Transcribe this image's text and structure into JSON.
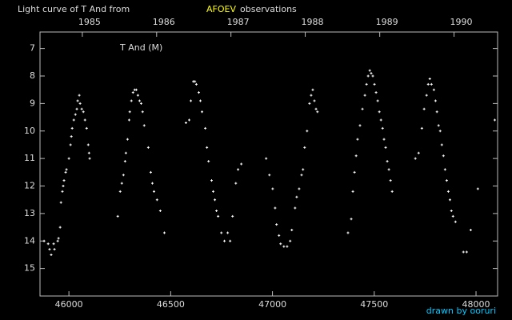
{
  "chart_data": {
    "type": "scatter",
    "title": "Light curve of T And from",
    "title_source": "AFOEV",
    "title_suffix": "observations",
    "annotation": "T And (M)",
    "credit": "drawn by ooruri",
    "background": "#000000",
    "color": "#ffffff",
    "source_color": "#ffff00",
    "credit_color": "#00c8ff",
    "xlim": [
      45858,
      48106
    ],
    "ylim": [
      16,
      6.4
    ],
    "xticks": [
      46000,
      46500,
      47000,
      47500,
      48000
    ],
    "yticks": [
      7,
      8,
      9,
      10,
      11,
      12,
      13,
      14,
      15
    ],
    "x2ticks": [
      {
        "value": 46066,
        "label": "1985"
      },
      {
        "value": 46431,
        "label": "1986"
      },
      {
        "value": 46796,
        "label": "1987"
      },
      {
        "value": 47161,
        "label": "1988"
      },
      {
        "value": 47527,
        "label": "1989"
      },
      {
        "value": 47892,
        "label": "1990"
      }
    ],
    "x": [
      45878,
      45898,
      45905,
      45913,
      45925,
      45929,
      45945,
      45949,
      45957,
      45961,
      45968,
      45972,
      45976,
      45984,
      45988,
      46000,
      46008,
      46012,
      46016,
      46024,
      46032,
      46039,
      46043,
      46051,
      46055,
      46063,
      46071,
      46079,
      46087,
      46095,
      46099,
      46102,
      46240,
      46252,
      46260,
      46268,
      46276,
      46280,
      46288,
      46296,
      46299,
      46307,
      46315,
      46323,
      46331,
      46339,
      46347,
      46355,
      46362,
      46370,
      46390,
      46402,
      46410,
      46418,
      46433,
      46449,
      46469,
      46575,
      46591,
      46599,
      46611,
      46619,
      46626,
      46638,
      46646,
      46654,
      46670,
      46678,
      46686,
      46701,
      46709,
      46717,
      46725,
      46733,
      46749,
      46764,
      46780,
      46792,
      46804,
      46820,
      46831,
      46847,
      46969,
      46985,
      47001,
      47013,
      47020,
      47032,
      47040,
      47056,
      47072,
      47087,
      47095,
      47111,
      47119,
      47131,
      47143,
      47150,
      47158,
      47170,
      47182,
      47190,
      47198,
      47206,
      47214,
      47221,
      47371,
      47387,
      47395,
      47403,
      47411,
      47418,
      47430,
      47442,
      47454,
      47462,
      47470,
      47478,
      47485,
      47493,
      47501,
      47509,
      47517,
      47525,
      47533,
      47541,
      47548,
      47556,
      47564,
      47572,
      47580,
      47588,
      47702,
      47718,
      47734,
      47745,
      47757,
      47765,
      47773,
      47781,
      47793,
      47801,
      47808,
      47816,
      47824,
      47832,
      47840,
      47848,
      47856,
      47864,
      47872,
      47879,
      47887,
      47899,
      47938,
      47954,
      47974,
      48009,
      48092
    ],
    "y": [
      14.0,
      14.1,
      14.3,
      14.5,
      14.1,
      14.3,
      14.0,
      13.9,
      13.5,
      12.6,
      12.2,
      12.0,
      11.8,
      11.5,
      11.4,
      11.0,
      10.5,
      10.2,
      9.9,
      9.6,
      9.4,
      9.2,
      8.9,
      8.7,
      9.0,
      9.2,
      9.3,
      9.6,
      9.9,
      10.5,
      10.8,
      11.0,
      13.1,
      12.2,
      11.9,
      11.6,
      11.1,
      10.8,
      10.3,
      9.6,
      9.3,
      8.9,
      8.6,
      8.5,
      8.5,
      8.7,
      8.9,
      9.0,
      9.3,
      9.8,
      10.6,
      11.5,
      11.9,
      12.2,
      12.5,
      12.9,
      13.7,
      9.7,
      9.6,
      8.9,
      8.2,
      8.2,
      8.3,
      8.6,
      8.9,
      9.3,
      9.9,
      10.6,
      11.1,
      11.8,
      12.2,
      12.5,
      12.9,
      13.1,
      13.7,
      14.0,
      13.7,
      14.0,
      13.1,
      11.9,
      11.4,
      11.2,
      11.0,
      11.6,
      12.1,
      12.8,
      13.4,
      13.8,
      14.1,
      14.2,
      14.2,
      14.0,
      13.6,
      12.8,
      12.4,
      12.1,
      11.6,
      11.4,
      10.6,
      10.0,
      9.0,
      8.7,
      8.5,
      8.9,
      9.2,
      9.3,
      13.7,
      13.2,
      12.2,
      11.5,
      10.9,
      10.3,
      9.8,
      9.2,
      8.7,
      8.3,
      8.0,
      7.8,
      7.9,
      8.0,
      8.3,
      8.6,
      8.9,
      9.3,
      9.6,
      9.9,
      10.3,
      10.6,
      11.1,
      11.4,
      11.8,
      12.2,
      11.0,
      10.8,
      9.9,
      9.2,
      8.7,
      8.3,
      8.1,
      8.3,
      8.5,
      8.9,
      9.3,
      9.8,
      10.0,
      10.5,
      10.9,
      11.4,
      11.8,
      12.2,
      12.5,
      12.9,
      13.1,
      13.3,
      14.4,
      14.4,
      13.6,
      12.1,
      9.6
    ]
  }
}
